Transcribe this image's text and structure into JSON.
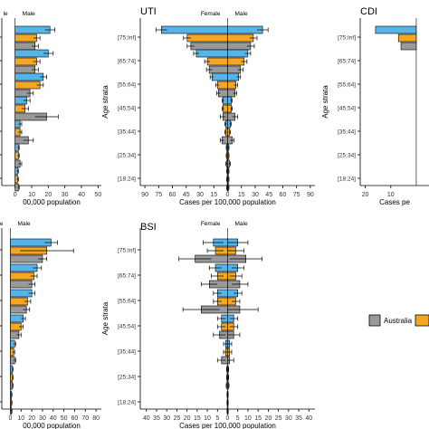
{
  "legend": {
    "items": [
      {
        "label": "Australia",
        "color": "#999999"
      },
      {
        "label": "",
        "color": "#F5A623"
      }
    ]
  },
  "colors": {
    "series_a": "#999999",
    "series_b": "#F5A623",
    "series_c": "#56B4E9",
    "outline": "#000000"
  },
  "chart_data": [
    {
      "type": "bar",
      "orientation": "horizontal",
      "title": "",
      "xlabel": "00,000 population",
      "ylabel": "",
      "female_label": "le",
      "male_label": "Male",
      "xlim": [
        -8,
        52
      ],
      "xticks": [
        0,
        10,
        20,
        30,
        40,
        50
      ],
      "xtick_labels": [
        "0",
        "10",
        "20",
        "30",
        "40",
        "50"
      ],
      "categories": [
        "[75;Inf]",
        "[65;74]",
        "[55;64]",
        "[45;54]",
        "[35;44]",
        "[25;34]",
        "[18;24]"
      ],
      "series": [
        {
          "values": [
            21,
            20,
            17,
            7,
            3,
            2,
            1.5
          ]
        },
        {
          "values": [
            13,
            13,
            15,
            6,
            3,
            2,
            1.5
          ]
        },
        {
          "values": [
            12,
            12,
            9,
            19,
            8,
            3,
            2
          ]
        }
      ],
      "ci": [
        [
          3,
          2,
          2
        ],
        [
          3,
          2,
          2
        ],
        [
          2,
          2,
          2
        ],
        [
          2,
          2,
          7
        ],
        [
          1,
          1,
          3
        ],
        [
          0.5,
          0.5,
          1
        ],
        [
          0.5,
          0.5,
          0.5
        ]
      ]
    },
    {
      "type": "bar",
      "orientation": "horizontal",
      "title": "UTI",
      "xlabel": "Cases per 100,000 population",
      "ylabel": "Age strata",
      "female_label": "Female",
      "male_label": "Male",
      "xlim": [
        -95,
        95
      ],
      "xticks": [
        -90,
        -75,
        -60,
        -45,
        -30,
        -15,
        0,
        15,
        30,
        45,
        60,
        75,
        90
      ],
      "xtick_labels": [
        "90",
        "75",
        "60",
        "45",
        "30",
        "15",
        "0",
        "15",
        "30",
        "45",
        "60",
        "75",
        "90"
      ],
      "categories": [
        "[75;Inf]",
        "[65;74]",
        "[55;64]",
        "[45;54]",
        "[35;44]",
        "[25;34]",
        "[18;24]"
      ],
      "series": [
        {
          "female": [
            72,
            34,
            17,
            5,
            2,
            1,
            0.5
          ],
          "male": [
            38,
            22,
            12,
            4,
            3,
            1,
            1
          ]
        },
        {
          "female": [
            44,
            22,
            11,
            5,
            2,
            1,
            0.5
          ],
          "male": [
            28,
            18,
            9,
            4,
            2,
            1,
            1
          ]
        },
        {
          "female": [
            40,
            20,
            10,
            5,
            6,
            1,
            0.5
          ],
          "male": [
            25,
            14,
            8,
            8,
            5,
            2,
            1
          ]
        }
      ],
      "ci": [
        [
          6,
          4,
          4
        ],
        [
          3,
          3,
          3
        ],
        [
          2,
          2,
          2
        ],
        [
          1,
          1,
          3
        ],
        [
          1,
          1,
          2
        ],
        [
          0.5,
          0.5,
          1
        ],
        [
          0.5,
          0.5,
          0.5
        ]
      ]
    },
    {
      "type": "bar",
      "orientation": "horizontal",
      "title": "CDI",
      "xlabel": "Cases pe",
      "ylabel": "Age strata",
      "female_label": "",
      "male_label": "",
      "xlim": [
        -22,
        5
      ],
      "xticks": [
        -20,
        -10
      ],
      "xtick_labels": [
        "20",
        "10"
      ],
      "categories": [
        "[75;Inf]",
        "[65;74]",
        "[55;64]",
        "[45;54]",
        "[35;44]",
        "[25;34]",
        "[18;24]"
      ],
      "series": [
        {
          "female": [
            16,
            0,
            0,
            0,
            0,
            0,
            0
          ]
        },
        {
          "female": [
            7,
            0,
            0,
            0,
            0,
            0,
            0
          ]
        },
        {
          "female": [
            6,
            0,
            0,
            0,
            0,
            0,
            0
          ]
        }
      ]
    },
    {
      "type": "bar",
      "orientation": "horizontal",
      "title": "",
      "xlabel": "00,000 population",
      "ylabel": "",
      "female_label": "le",
      "male_label": "Male",
      "xlim": [
        -8,
        85
      ],
      "xticks": [
        0,
        10,
        20,
        30,
        40,
        50,
        60,
        70,
        80
      ],
      "xtick_labels": [
        "0",
        "10",
        "20",
        "30",
        "40",
        "50",
        "60",
        "70",
        "80"
      ],
      "categories": [
        "[75;Inf]",
        "[65;74]",
        "[55;64]",
        "[45;54]",
        "[35;44]",
        "[25;34]",
        "[18;24]"
      ],
      "series": [
        {
          "values": [
            38,
            25,
            20,
            12,
            4,
            2,
            1
          ]
        },
        {
          "values": [
            34,
            22,
            16,
            10,
            3,
            2,
            1
          ]
        },
        {
          "values": [
            30,
            20,
            15,
            8,
            4,
            2,
            1
          ]
        }
      ],
      "ci": [
        [
          6,
          25,
          4
        ],
        [
          4,
          3,
          3
        ],
        [
          3,
          3,
          3
        ],
        [
          2,
          2,
          2
        ],
        [
          1,
          1,
          1
        ],
        [
          0.5,
          0.5,
          0.5
        ],
        [
          0.5,
          0.5,
          0.5
        ]
      ]
    },
    {
      "type": "bar",
      "orientation": "horizontal",
      "title": "BSI",
      "xlabel": "Cases per 100,000 population",
      "ylabel": "Age strata",
      "female_label": "Female",
      "male_label": "Male",
      "xlim": [
        -43,
        43
      ],
      "xticks": [
        -40,
        -35,
        -30,
        -25,
        -20,
        -15,
        -10,
        -5,
        0,
        5,
        10,
        15,
        20,
        25,
        30,
        35,
        40
      ],
      "xtick_labels": [
        "40",
        "35",
        "30",
        "25",
        "20",
        "15",
        "10",
        "5",
        "0",
        "5",
        "10",
        "15",
        "20",
        "25",
        "30",
        "35",
        "40"
      ],
      "categories": [
        "[75;Inf]",
        "[65;74]",
        "[55;64]",
        "[45;54]",
        "[35;44]",
        "[25;34]",
        "[18;24]"
      ],
      "series": [
        {
          "female": [
            7,
            6,
            5,
            3,
            1,
            0.3,
            0.2
          ],
          "male": [
            5,
            5,
            5,
            3,
            1,
            0.3,
            0.2
          ]
        },
        {
          "female": [
            6,
            5,
            5,
            3,
            1,
            0.3,
            0.2
          ],
          "male": [
            4,
            4,
            4,
            3,
            1,
            0.3,
            0.2
          ]
        },
        {
          "female": [
            16,
            9,
            13,
            4,
            3,
            0.4,
            0.2
          ],
          "male": [
            9,
            6,
            6,
            3,
            1,
            0.4,
            0.2
          ]
        }
      ],
      "ci": [
        [
          5,
          4,
          8
        ],
        [
          3,
          3,
          4
        ],
        [
          2,
          2,
          9
        ],
        [
          2,
          2,
          3
        ],
        [
          1,
          1,
          2
        ],
        [
          0.2,
          0.2,
          0.3
        ],
        [
          0.1,
          0.1,
          0.1
        ]
      ]
    }
  ]
}
